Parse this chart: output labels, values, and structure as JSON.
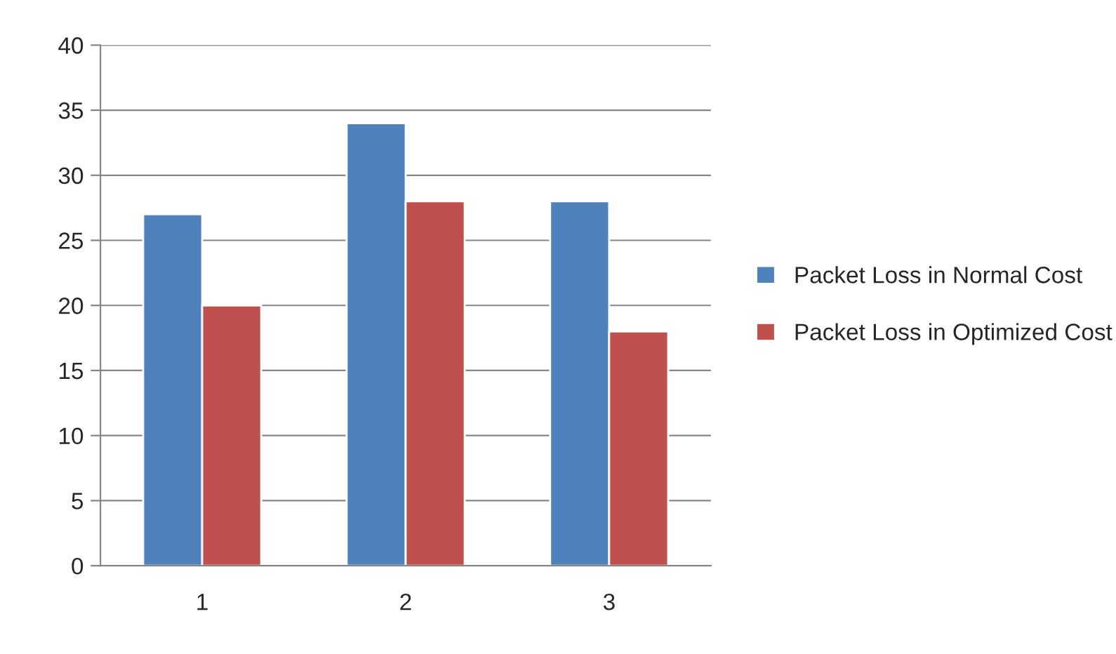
{
  "chart_data": {
    "type": "bar",
    "categories": [
      "1",
      "2",
      "3"
    ],
    "series": [
      {
        "name": "Packet Loss in Normal Cost",
        "color": "#4f81bd",
        "values": [
          27,
          34,
          28
        ]
      },
      {
        "name": "Packet Loss in Optimized Cost",
        "color": "#c0504d",
        "values": [
          20,
          28,
          18
        ]
      }
    ],
    "ylim": [
      0,
      40
    ],
    "yticks": [
      0,
      5,
      10,
      15,
      20,
      25,
      30,
      35,
      40
    ],
    "grid": "y",
    "legend": "right"
  }
}
